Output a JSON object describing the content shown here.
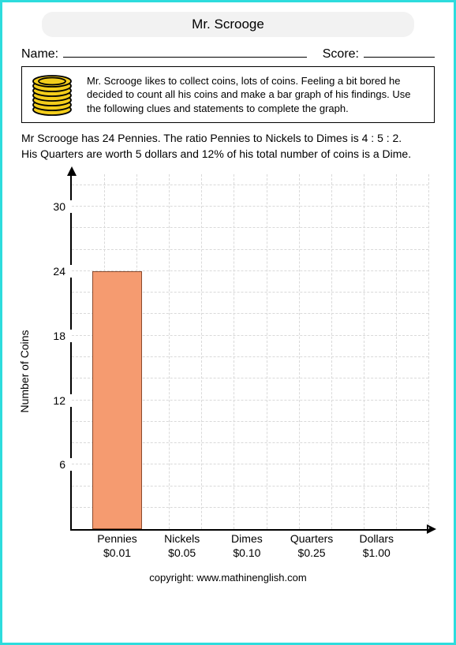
{
  "title": "Mr. Scrooge",
  "name_label": "Name:",
  "score_label": "Score:",
  "intro_text": "Mr. Scrooge likes to collect coins, lots of coins. Feeling a bit bored he decided to count all his coins and make a bar graph of his findings. Use the following clues and statements to complete the graph.",
  "clue_line1": "Mr Scrooge has 24 Pennies. The ratio Pennies to Nickels to Dimes is  4 : 5 : 2.",
  "clue_line2": "His Quarters are worth 5 dollars and 12% of his total number of coins is a Dime.",
  "chart": {
    "type": "bar",
    "ylabel": "Number of Coins",
    "ymax": 33,
    "yticks": [
      6,
      12,
      18,
      24,
      30
    ],
    "minor_step": 2,
    "categories": [
      {
        "name": "Pennies",
        "price": "$0.01",
        "value": 24
      },
      {
        "name": "Nickels",
        "price": "$0.05",
        "value": null
      },
      {
        "name": "Dimes",
        "price": "$0.10",
        "value": null
      },
      {
        "name": "Quarters",
        "price": "$0.25",
        "value": null
      },
      {
        "name": "Dollars",
        "price": "$1.00",
        "value": null
      }
    ],
    "bar_color": "#f59b70",
    "bar_border": "#8a4a2d",
    "grid_color": "#d9d9d9",
    "bar_width_pct": 14
  },
  "coin_colors": {
    "fill": "#f3cd1b",
    "stroke": "#000000"
  },
  "copyright": "copyright:    www.mathinenglish.com"
}
